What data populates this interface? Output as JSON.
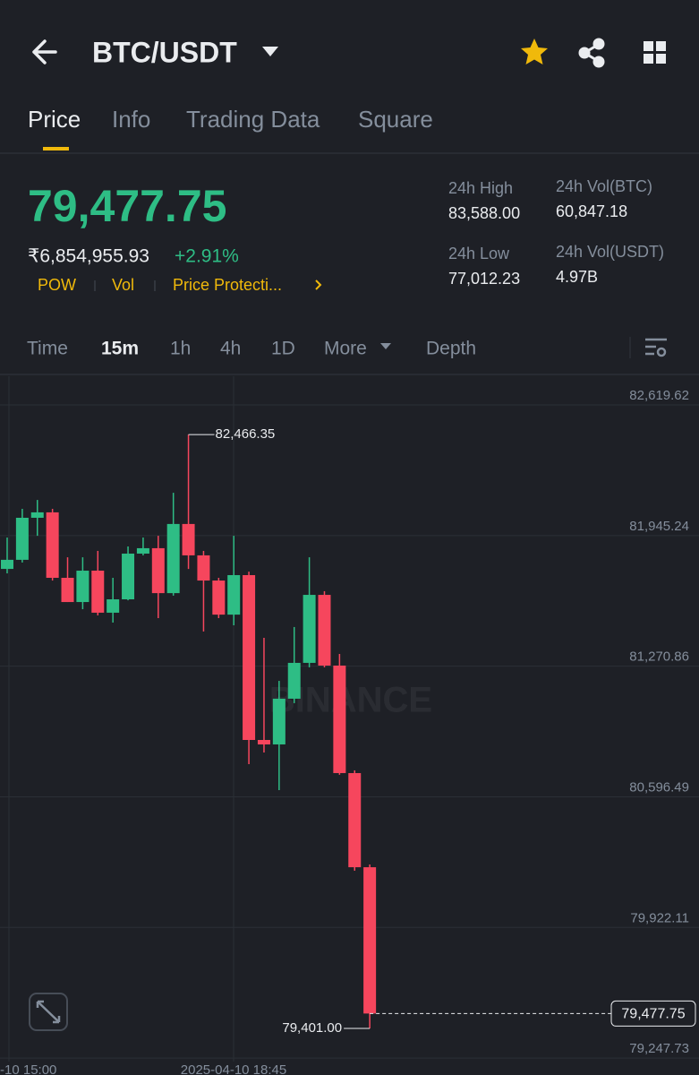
{
  "header": {
    "title": "BTC/USDT"
  },
  "tabs": [
    "Price",
    "Info",
    "Trading Data",
    "Square"
  ],
  "price": {
    "last": "79,477.75",
    "local": "₹6,854,955.93",
    "change": "+2.91%",
    "tags": [
      "POW",
      "Vol",
      "Price Protecti..."
    ]
  },
  "stats": [
    {
      "label": "24h High",
      "value": "83,588.00"
    },
    {
      "label": "24h Vol(BTC)",
      "value": "60,847.18"
    },
    {
      "label": "24h Low",
      "value": "77,012.23"
    },
    {
      "label": "24h Vol(USDT)",
      "value": "4.97B"
    }
  ],
  "intervals": [
    "Time",
    "15m",
    "1h",
    "4h",
    "1D",
    "More",
    "Depth"
  ],
  "chart_data": {
    "type": "candlestick",
    "watermark": "BINANCE",
    "up_color": "#2ebd85",
    "down_color": "#f6465d",
    "open": [
      81773,
      81820,
      82037,
      82065,
      81727,
      81602,
      81764,
      81547,
      81616,
      81852,
      81880,
      81648,
      82005,
      81843,
      81713,
      81537,
      81741,
      80890,
      80867,
      81103,
      81288,
      81639,
      81274,
      80719,
      80233
    ],
    "high": [
      81935,
      82083,
      82129,
      82083,
      81833,
      81833,
      81866,
      81727,
      81889,
      81935,
      81944,
      82166,
      82466.35,
      81866,
      81727,
      81944,
      81759,
      81417,
      81195,
      81473,
      81833,
      81658,
      81334,
      80733,
      80247
    ],
    "low": [
      81750,
      81806,
      81944,
      81713,
      81602,
      81565,
      81533,
      81496,
      81611,
      81843,
      81519,
      81635,
      81773,
      81450,
      81519,
      81482,
      80765,
      80825,
      80631,
      81080,
      81265,
      81265,
      80710,
      80215,
      79401.0
    ],
    "close": [
      81820,
      82037,
      82065,
      81727,
      81602,
      81764,
      81547,
      81616,
      81852,
      81880,
      81648,
      82005,
      81843,
      81713,
      81537,
      81741,
      80890,
      80867,
      81103,
      81288,
      81639,
      81274,
      80719,
      80233,
      79477.75
    ],
    "ylim": [
      79229.8,
      82767.6
    ],
    "yticks": [
      {
        "value": 82619.62,
        "label": "82,619.62"
      },
      {
        "value": 81945.24,
        "label": "81,945.24"
      },
      {
        "value": 81270.86,
        "label": "81,270.86"
      },
      {
        "value": 80596.49,
        "label": "80,596.49"
      },
      {
        "value": 79922.11,
        "label": "79,922.11"
      },
      {
        "value": 79247.73,
        "label": "79,247.73"
      }
    ],
    "high_label": {
      "value": 82466.35,
      "label": "82,466.35"
    },
    "low_label": {
      "value": 79401.0,
      "label": "79,401.00"
    },
    "last_label": {
      "value": 79477.75,
      "label": "79,477.75"
    },
    "x_labels": [
      "-10 15:00",
      "2025-04-10 18:45"
    ]
  }
}
